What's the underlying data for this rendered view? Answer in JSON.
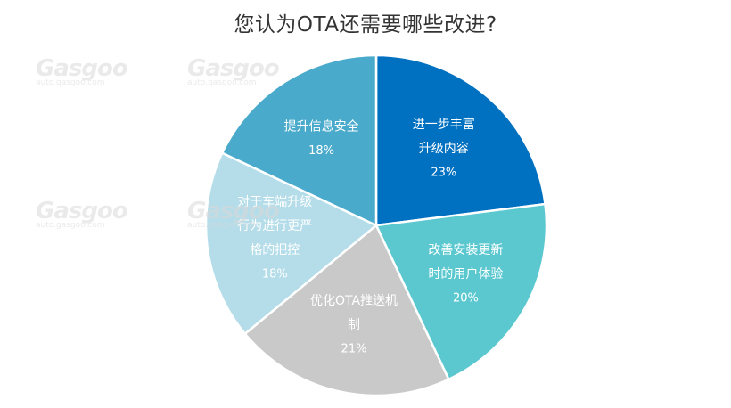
{
  "chart_data": {
    "type": "pie",
    "title": "您认为OTA还需要哪些改进?",
    "slices": [
      {
        "label_lines": [
          "进一步丰富",
          "升级内容"
        ],
        "value": 23,
        "value_label": "23%",
        "color": "#0070c0"
      },
      {
        "label_lines": [
          "改善安装更新",
          "时的用户体验"
        ],
        "value": 20,
        "value_label": "20%",
        "color": "#5bc8d0"
      },
      {
        "label_lines": [
          "优化OTA推送机",
          "制"
        ],
        "value": 21,
        "value_label": "21%",
        "color": "#c9c9c9"
      },
      {
        "label_lines": [
          "对于车端升级",
          "行为进行更严",
          "格的把控"
        ],
        "value": 18,
        "value_label": "18%",
        "color": "#b4dde9"
      },
      {
        "label_lines": [
          "提升信息安全"
        ],
        "value": 18,
        "value_label": "18%",
        "color": "#4aaacb"
      }
    ],
    "start_angle_deg": 0,
    "direction": "clockwise"
  },
  "watermark": {
    "brand": "Gasgoo",
    "url": "auto.gasgoo.com"
  }
}
